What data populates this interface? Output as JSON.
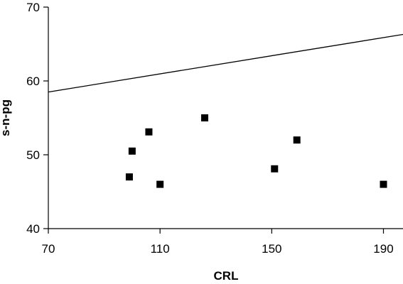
{
  "chart_data": {
    "type": "scatter",
    "title": "",
    "xlabel": "CRL",
    "ylabel": "s-n-pg",
    "xlim": [
      70,
      197
    ],
    "ylim": [
      40,
      70
    ],
    "xticks": [
      70,
      110,
      150,
      190
    ],
    "yticks": [
      40,
      50,
      60,
      70
    ],
    "grid": false,
    "legend": "none",
    "marker_color": "#000000",
    "series": [
      {
        "type": "scatter",
        "marker": "square",
        "points": [
          {
            "x": 99,
            "y": 47.0
          },
          {
            "x": 100,
            "y": 50.5
          },
          {
            "x": 106,
            "y": 53.1
          },
          {
            "x": 110,
            "y": 46.0
          },
          {
            "x": 126,
            "y": 55.0
          },
          {
            "x": 151,
            "y": 48.1
          },
          {
            "x": 159,
            "y": 52.0
          },
          {
            "x": 190,
            "y": 46.0
          }
        ]
      },
      {
        "type": "line",
        "points": [
          {
            "x": 70,
            "y": 58.5
          },
          {
            "x": 197,
            "y": 66.3
          }
        ]
      }
    ]
  }
}
